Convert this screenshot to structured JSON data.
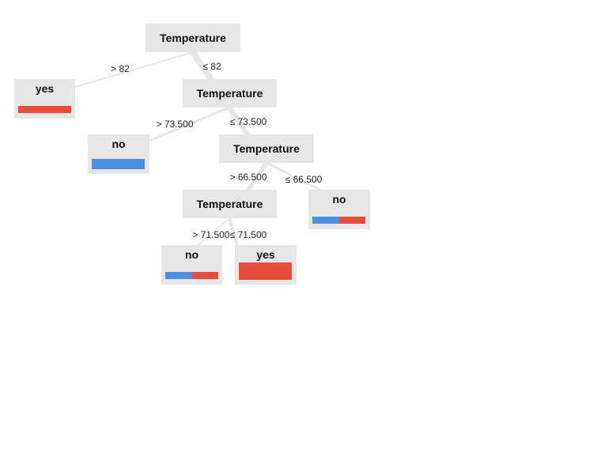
{
  "tree": {
    "colors": {
      "no": "#4a8fe0",
      "yes": "#e84c3d",
      "node_bg": "#e6e6e6",
      "edge": "#e6e6e6"
    },
    "nodes": [
      {
        "id": "n1",
        "label": "Temperature",
        "type": "split"
      },
      {
        "id": "n2",
        "label": "yes",
        "type": "leaf",
        "dist": {
          "no": 0,
          "yes": 1
        }
      },
      {
        "id": "n3",
        "label": "Temperature",
        "type": "split"
      },
      {
        "id": "n4",
        "label": "no",
        "type": "leaf",
        "dist": {
          "no": 1,
          "yes": 0
        }
      },
      {
        "id": "n5",
        "label": "Temperature",
        "type": "split"
      },
      {
        "id": "n6",
        "label": "Temperature",
        "type": "split"
      },
      {
        "id": "n7",
        "label": "no",
        "type": "leaf",
        "dist": {
          "no": 0.5,
          "yes": 0.5
        }
      },
      {
        "id": "n8",
        "label": "no",
        "type": "leaf",
        "dist": {
          "no": 0.5,
          "yes": 0.5
        }
      },
      {
        "id": "n9",
        "label": "yes",
        "type": "leaf",
        "dist": {
          "no": 0,
          "yes": 1
        }
      }
    ],
    "edges": [
      {
        "from": "n1",
        "to": "n2",
        "label": "> 82"
      },
      {
        "from": "n1",
        "to": "n3",
        "label": "≤ 82"
      },
      {
        "from": "n3",
        "to": "n4",
        "label": "> 73.500"
      },
      {
        "from": "n3",
        "to": "n5",
        "label": "≤ 73.500"
      },
      {
        "from": "n5",
        "to": "n6",
        "label": "> 66.500"
      },
      {
        "from": "n5",
        "to": "n7",
        "label": "≤ 66.500"
      },
      {
        "from": "n6",
        "to": "n8",
        "label": "> 71.500"
      },
      {
        "from": "n6",
        "to": "n9",
        "label": "≤ 71.500"
      }
    ]
  }
}
